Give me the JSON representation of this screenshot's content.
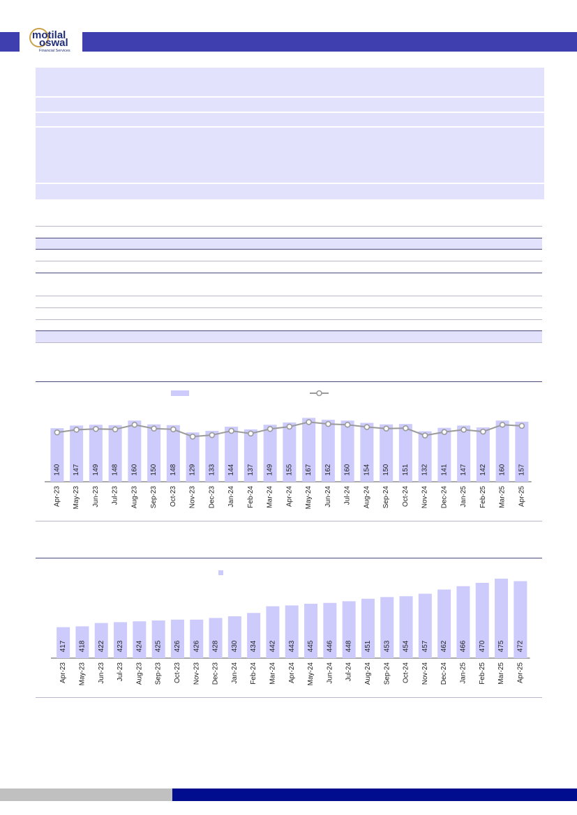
{
  "header": {
    "brand_name_line1": "motilal",
    "brand_name_line2": "oswal",
    "brand_tagline": "Financial Services"
  },
  "colors": {
    "header_blue": "#3f3fb0",
    "bar_fill": "#cccbfc",
    "line_stroke": "#9a9a9a",
    "footer_blue": "#000d8f",
    "footer_grey": "#c0c0c0",
    "table_shade": "#e2e2fd"
  },
  "chart_data": [
    {
      "type": "bar",
      "secondary_type": "line",
      "categories": [
        "Apr-23",
        "May-23",
        "Jun-23",
        "Jul-23",
        "Aug-23",
        "Sep-23",
        "Oct-23",
        "Nov-23",
        "Dec-23",
        "Jan-24",
        "Feb-24",
        "Mar-24",
        "Apr-24",
        "May-24",
        "Jun-24",
        "Jul-24",
        "Aug-24",
        "Sep-24",
        "Oct-24",
        "Nov-24",
        "Dec-24",
        "Jan-25",
        "Feb-25",
        "Mar-25",
        "Apr-25"
      ],
      "values": [
        140,
        147,
        149,
        148,
        160,
        150,
        148,
        129,
        133,
        144,
        137,
        149,
        155,
        167,
        162,
        160,
        154,
        150,
        151,
        132,
        141,
        147,
        142,
        160,
        157
      ],
      "legend": [
        "bar",
        "line-marker"
      ],
      "ylim": [
        0,
        175
      ]
    },
    {
      "type": "bar",
      "categories": [
        "Apr-23",
        "May-23",
        "Jun-23",
        "Jul-23",
        "Aug-23",
        "Sep-23",
        "Oct-23",
        "Nov-23",
        "Dec-23",
        "Jan-24",
        "Feb-24",
        "Mar-24",
        "Apr-24",
        "May-24",
        "Jun-24",
        "Jul-24",
        "Aug-24",
        "Sep-24",
        "Oct-24",
        "Nov-24",
        "Dec-24",
        "Jan-25",
        "Feb-25",
        "Mar-25",
        "Apr-25"
      ],
      "values": [
        417,
        418,
        422,
        423,
        424,
        425,
        426,
        426,
        428,
        430,
        434,
        442,
        443,
        445,
        446,
        448,
        451,
        453,
        454,
        457,
        462,
        466,
        470,
        475,
        472
      ],
      "legend": [
        "bar"
      ],
      "ylim": [
        380,
        480
      ]
    }
  ]
}
